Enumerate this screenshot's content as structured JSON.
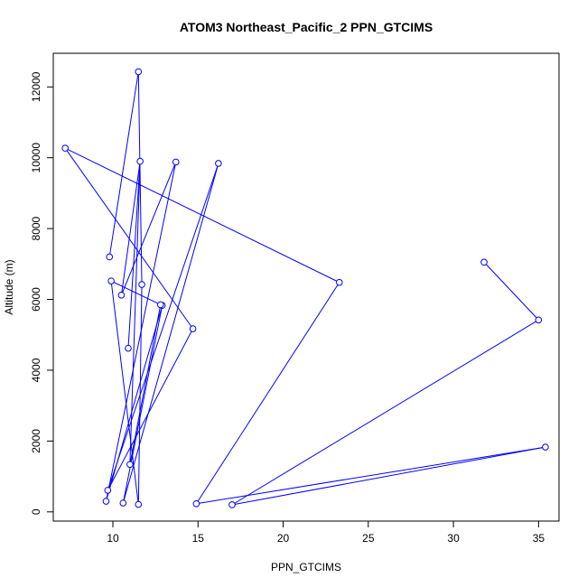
{
  "chart_data": {
    "type": "scatter",
    "title": "ATOM3 Northeast_Pacific_2 PPN_GTCIMS",
    "xlabel": "PPN_GTCIMS",
    "ylabel": "Altitude (m)",
    "xlim": [
      6.5,
      36.2
    ],
    "ylim": [
      -260,
      12950
    ],
    "xticks": [
      10,
      15,
      20,
      25,
      30,
      35
    ],
    "yticks": [
      0,
      2000,
      4000,
      6000,
      8000,
      10000,
      12000
    ],
    "grid": false,
    "legend": "none",
    "connected": true,
    "color": "#0000ff",
    "marker": "open-circle",
    "points": [
      {
        "x": 31.8,
        "y": 7050
      },
      {
        "x": 35.0,
        "y": 5420
      },
      {
        "x": 17.0,
        "y": 200
      },
      {
        "x": 35.4,
        "y": 1830
      },
      {
        "x": 14.9,
        "y": 230
      },
      {
        "x": 23.3,
        "y": 6480
      },
      {
        "x": 7.2,
        "y": 10270
      },
      {
        "x": 14.7,
        "y": 5170
      },
      {
        "x": 9.7,
        "y": 610
      },
      {
        "x": 16.2,
        "y": 9840
      },
      {
        "x": 10.6,
        "y": 250
      },
      {
        "x": 12.9,
        "y": 5830
      },
      {
        "x": 9.6,
        "y": 300
      },
      {
        "x": 13.7,
        "y": 9880
      },
      {
        "x": 10.5,
        "y": 6120
      },
      {
        "x": 11.6,
        "y": 9900
      },
      {
        "x": 11.0,
        "y": 1340
      },
      {
        "x": 12.8,
        "y": 5850
      },
      {
        "x": 9.9,
        "y": 6520
      },
      {
        "x": 11.5,
        "y": 210
      },
      {
        "x": 11.7,
        "y": 6420
      },
      {
        "x": 11.5,
        "y": 12430
      }
    ],
    "extra_points": [
      {
        "x": 9.8,
        "y": 7200
      },
      {
        "x": 10.9,
        "y": 4620
      }
    ],
    "extra_connections": [
      [
        9.8,
        7200,
        11.5,
        12430
      ],
      [
        10.9,
        4620,
        11.6,
        9900
      ]
    ]
  }
}
